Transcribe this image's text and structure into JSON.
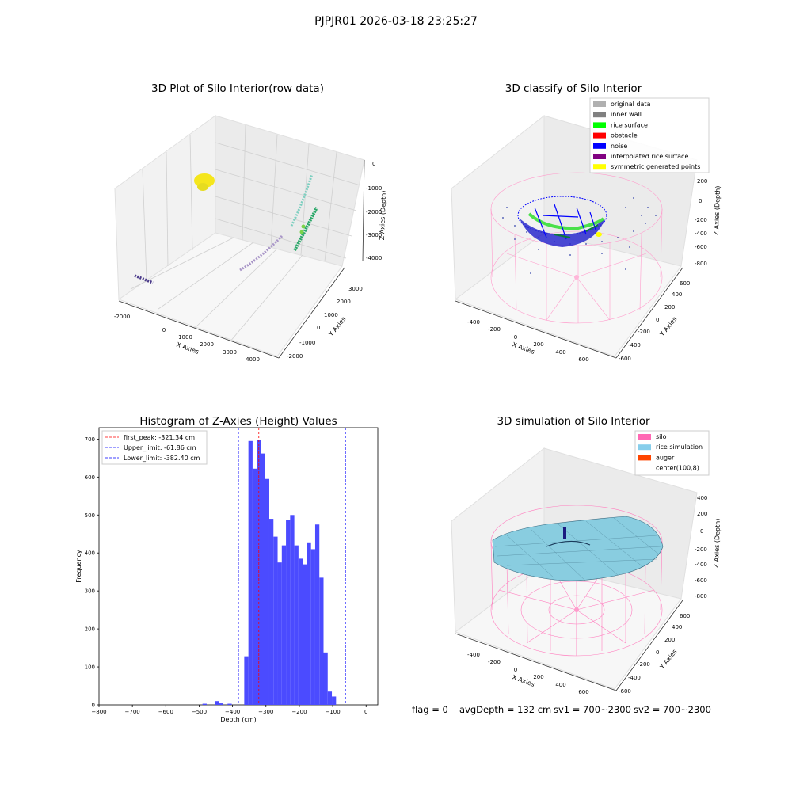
{
  "suptitle": "PJPJR01 2026-03-18 23:25:27",
  "status_line": {
    "flag": "flag = 0",
    "avg": "avgDepth = 132 cm",
    "sv1": "sv1 = 700~2300",
    "sv2": "sv2 = 700~2300"
  },
  "chart_data": [
    {
      "type": "scatter",
      "title": "3D Plot of Silo Interior(row data)",
      "xlabel": "X Axies",
      "ylabel": "Y Axies",
      "zlabel": "Z Axies (Depth)",
      "x_ticks": [
        "-2000",
        "0",
        "1000",
        "2000",
        "3000",
        "4000"
      ],
      "y_ticks": [
        "-2000",
        "-1000",
        "0",
        "1000",
        "2000",
        "3000"
      ],
      "z_ticks": [
        "0",
        "-1000",
        "-2000",
        "-3000",
        "-4000"
      ]
    },
    {
      "type": "scatter",
      "title": "3D classify of Silo Interior",
      "xlabel": "X Axies",
      "ylabel": "Y Axies",
      "zlabel": "Z Axies (Depth)",
      "x_ticks": [
        "-400",
        "-200",
        "0",
        "200",
        "400",
        "600"
      ],
      "y_ticks": [
        "-600",
        "-400",
        "-200",
        "0",
        "200",
        "400",
        "600"
      ],
      "z_ticks": [
        "200",
        "0",
        "-200",
        "-400",
        "-600",
        "-800"
      ],
      "legend": [
        {
          "label": "original data",
          "color": "#b0b0b0"
        },
        {
          "label": "inner wall",
          "color": "#808080"
        },
        {
          "label": "rice surface",
          "color": "#00ff00"
        },
        {
          "label": "obstacle",
          "color": "#ff0000"
        },
        {
          "label": "noise",
          "color": "#0000ff"
        },
        {
          "label": "interpolated rice surface",
          "color": "#800080"
        },
        {
          "label": "symmetric generated points",
          "color": "#ffff00"
        }
      ]
    },
    {
      "type": "bar",
      "title": "Histogram of Z-Axies (Height) Values",
      "xlabel": "Depth (cm)",
      "ylabel": "Frequency",
      "xlim": [
        -800,
        35
      ],
      "ylim": [
        0,
        730
      ],
      "x_ticks": [
        -800,
        -700,
        -600,
        -500,
        -400,
        -300,
        -200,
        -100,
        0
      ],
      "y_ticks": [
        0,
        100,
        200,
        300,
        400,
        500,
        600,
        700
      ],
      "bin_width": 12.5,
      "bins": [
        {
          "x": -490,
          "y": 3
        },
        {
          "x": -477.5,
          "y": 0
        },
        {
          "x": -465,
          "y": 0
        },
        {
          "x": -452.5,
          "y": 10
        },
        {
          "x": -440,
          "y": 4
        },
        {
          "x": -427.5,
          "y": 0
        },
        {
          "x": -415,
          "y": 3
        },
        {
          "x": -402.5,
          "y": 0
        },
        {
          "x": -390,
          "y": 0
        },
        {
          "x": -377.5,
          "y": 0
        },
        {
          "x": -365,
          "y": 128
        },
        {
          "x": -352.5,
          "y": 695
        },
        {
          "x": -340,
          "y": 622
        },
        {
          "x": -327.5,
          "y": 697
        },
        {
          "x": -315,
          "y": 662
        },
        {
          "x": -302.5,
          "y": 595
        },
        {
          "x": -290,
          "y": 490
        },
        {
          "x": -277.5,
          "y": 443
        },
        {
          "x": -265,
          "y": 375
        },
        {
          "x": -252.5,
          "y": 420
        },
        {
          "x": -240,
          "y": 487
        },
        {
          "x": -227.5,
          "y": 500
        },
        {
          "x": -215,
          "y": 420
        },
        {
          "x": -202.5,
          "y": 385
        },
        {
          "x": -190,
          "y": 370
        },
        {
          "x": -177.5,
          "y": 428
        },
        {
          "x": -165,
          "y": 410
        },
        {
          "x": -152.5,
          "y": 475
        },
        {
          "x": -140,
          "y": 335
        },
        {
          "x": -127.5,
          "y": 138
        },
        {
          "x": -115,
          "y": 35
        },
        {
          "x": -102.5,
          "y": 22
        }
      ],
      "bar_color": "#4b4bff",
      "vlines": [
        {
          "value": -321.34,
          "color": "#ff0000",
          "label": "first_peak: -321.34 cm"
        },
        {
          "value": -61.86,
          "color": "#0000ff",
          "label": "Upper_limit: -61.86 cm"
        },
        {
          "value": -382.4,
          "color": "#0000ff",
          "label": "Lower_limit: -382.40 cm"
        }
      ],
      "legend_placement": "top-left"
    },
    {
      "type": "scatter",
      "title": "3D simulation of Silo Interior",
      "xlabel": "X Axies",
      "ylabel": "Y Axies",
      "zlabel": "Z Axies (Depth)",
      "x_ticks": [
        "-400",
        "-200",
        "0",
        "200",
        "400",
        "600"
      ],
      "y_ticks": [
        "-600",
        "-400",
        "-200",
        "0",
        "200",
        "400",
        "600"
      ],
      "z_ticks": [
        "400",
        "200",
        "0",
        "-200",
        "-400",
        "-600",
        "-800"
      ],
      "legend": [
        {
          "label": "silo",
          "color": "#ff69b4"
        },
        {
          "label": "rice simulation",
          "color": "#87ceeb"
        },
        {
          "label": "auger",
          "color": "#ff4500"
        },
        {
          "label": "center(100,8)",
          "color": "#ffffff"
        }
      ]
    }
  ]
}
